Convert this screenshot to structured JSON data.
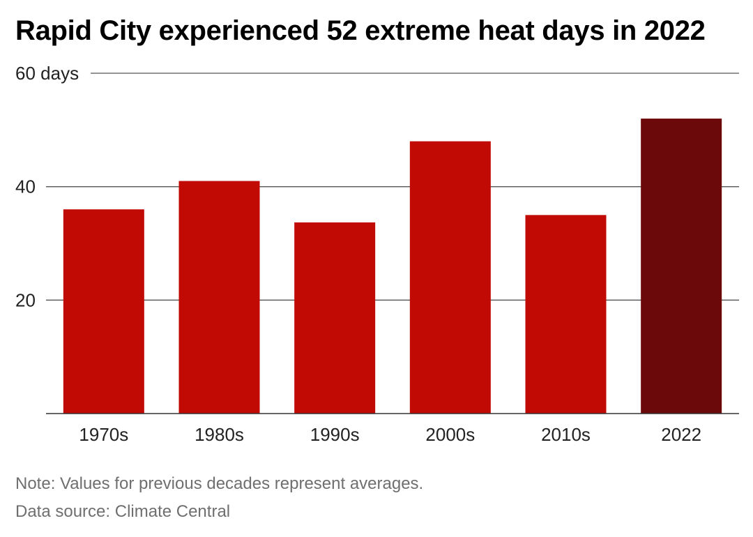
{
  "chart_data": {
    "type": "bar",
    "title": "Rapid City experienced 52 extreme heat days in 2022",
    "categories": [
      "1970s",
      "1980s",
      "1990s",
      "2000s",
      "2010s",
      "2022"
    ],
    "values": [
      36,
      41,
      33.7,
      48,
      35,
      52
    ],
    "ylim": [
      0,
      60
    ],
    "yticks": [
      20,
      40,
      60
    ],
    "ytick_labels": [
      "20",
      "40",
      "60 days"
    ],
    "xlabel": "",
    "ylabel": "",
    "grid": true,
    "colors": {
      "bar": "#c20a04",
      "highlight": "#6b080a",
      "gridline": "#555555",
      "axis_text": "#222222"
    },
    "highlight_category": "2022"
  },
  "notes": {
    "note": "Note: Values for previous decades represent averages.",
    "source": "Data source: Climate Central"
  }
}
